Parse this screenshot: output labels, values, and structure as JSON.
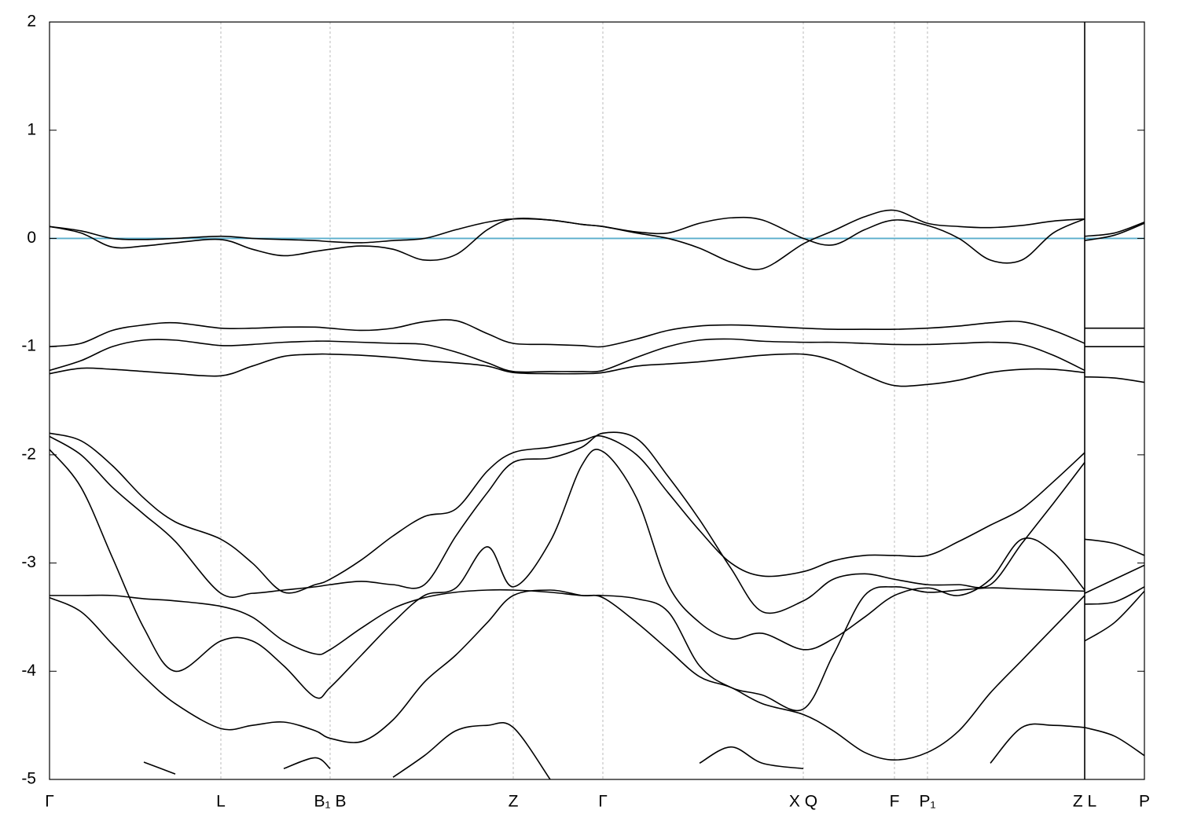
{
  "chart_data": {
    "type": "line",
    "xlim": [
      0,
      1393
    ],
    "ylim": [
      -5,
      2
    ],
    "yticks": [
      -5,
      -4,
      -3,
      -2,
      -1,
      0,
      1,
      2
    ],
    "xticks": [
      {
        "value": 0,
        "label": "Γ"
      },
      {
        "value": 218,
        "label": "L"
      },
      {
        "value": 357,
        "label": "B₁ B"
      },
      {
        "value": 590,
        "label": "Z"
      },
      {
        "value": 704,
        "label": "Γ"
      },
      {
        "value": 959,
        "label": "X Q"
      },
      {
        "value": 1075,
        "label": "F"
      },
      {
        "value": 1117,
        "label": "P₁"
      },
      {
        "value": 1317,
        "label": "Z L"
      },
      {
        "value": 1393,
        "label": "P"
      }
    ],
    "grid": true,
    "breaks": [
      1317
    ],
    "hline": {
      "value": 0,
      "color": "#5aaecb"
    },
    "x": [
      0,
      40,
      80,
      120,
      160,
      218,
      258,
      298,
      338,
      357,
      397,
      437,
      477,
      517,
      557,
      590,
      637,
      677,
      704,
      747,
      787,
      827,
      867,
      907,
      959,
      997,
      1037,
      1075,
      1117,
      1157,
      1197,
      1237,
      1277,
      1317
    ],
    "series": [
      {
        "color": "#000000",
        "values": [
          0.11,
          0.07,
          0.0,
          -0.01,
          0.0,
          0.02,
          0.0,
          -0.01,
          -0.02,
          -0.03,
          -0.04,
          -0.02,
          0.0,
          0.08,
          0.15,
          0.18,
          0.17,
          0.13,
          0.11,
          0.05,
          0.0,
          -0.09,
          -0.22,
          -0.28,
          -0.05,
          0.07,
          0.2,
          0.26,
          0.14,
          0.11,
          0.1,
          0.12,
          0.16,
          0.18
        ]
      },
      {
        "color": "#000000",
        "values": [
          0.11,
          0.05,
          -0.08,
          -0.07,
          -0.04,
          -0.01,
          -0.1,
          -0.16,
          -0.12,
          -0.1,
          -0.07,
          -0.1,
          -0.2,
          -0.15,
          0.08,
          0.18,
          0.17,
          0.13,
          0.11,
          0.06,
          0.05,
          0.14,
          0.19,
          0.17,
          0.0,
          -0.06,
          0.08,
          0.17,
          0.12,
          0.0,
          -0.2,
          -0.2,
          0.05,
          0.18
        ]
      },
      {
        "color": "#000000",
        "values": [
          -1.0,
          -0.97,
          -0.85,
          -0.8,
          -0.78,
          -0.83,
          -0.83,
          -0.82,
          -0.82,
          -0.83,
          -0.85,
          -0.83,
          -0.77,
          -0.76,
          -0.88,
          -0.97,
          -0.98,
          -0.99,
          -1.0,
          -0.93,
          -0.85,
          -0.81,
          -0.8,
          -0.81,
          -0.83,
          -0.84,
          -0.84,
          -0.84,
          -0.83,
          -0.81,
          -0.78,
          -0.77,
          -0.85,
          -0.97
        ]
      },
      {
        "color": "#000000",
        "values": [
          -1.22,
          -1.13,
          -1.0,
          -0.94,
          -0.94,
          -0.99,
          -0.98,
          -0.96,
          -0.95,
          -0.95,
          -0.96,
          -0.97,
          -0.98,
          -1.05,
          -1.15,
          -1.23,
          -1.23,
          -1.23,
          -1.22,
          -1.1,
          -1.0,
          -0.94,
          -0.93,
          -0.95,
          -0.96,
          -0.96,
          -0.97,
          -0.98,
          -0.98,
          -0.97,
          -0.96,
          -0.98,
          -1.08,
          -1.22
        ]
      },
      {
        "color": "#000000",
        "values": [
          -1.25,
          -1.2,
          -1.21,
          -1.23,
          -1.25,
          -1.27,
          -1.18,
          -1.09,
          -1.07,
          -1.07,
          -1.08,
          -1.1,
          -1.13,
          -1.15,
          -1.18,
          -1.24,
          -1.25,
          -1.25,
          -1.24,
          -1.18,
          -1.16,
          -1.14,
          -1.11,
          -1.08,
          -1.07,
          -1.13,
          -1.26,
          -1.36,
          -1.35,
          -1.31,
          -1.24,
          -1.21,
          -1.21,
          -1.24
        ]
      },
      {
        "color": "#000000",
        "values": [
          -1.8,
          -1.87,
          -2.1,
          -2.4,
          -2.62,
          -2.78,
          -3.0,
          -3.27,
          -3.2,
          -3.15,
          -2.97,
          -2.75,
          -2.57,
          -2.5,
          -2.15,
          -1.98,
          -1.93,
          -1.87,
          -1.83,
          -2.0,
          -2.35,
          -2.7,
          -3.0,
          -3.12,
          -3.08,
          -2.98,
          -2.93,
          -2.93,
          -2.93,
          -2.8,
          -2.65,
          -2.5,
          -2.25,
          -1.98
        ]
      },
      {
        "color": "#000000",
        "values": [
          -1.83,
          -2.0,
          -2.3,
          -2.55,
          -2.8,
          -3.28,
          -3.28,
          -3.25,
          -3.22,
          -3.2,
          -3.17,
          -3.2,
          -3.2,
          -2.75,
          -2.35,
          -2.07,
          -2.03,
          -1.93,
          -1.8,
          -1.85,
          -2.2,
          -2.6,
          -3.05,
          -3.45,
          -3.35,
          -3.15,
          -3.1,
          -3.15,
          -3.2,
          -3.2,
          -3.2,
          -2.82,
          -2.45,
          -2.07
        ]
      },
      {
        "color": "#000000",
        "values": [
          -1.95,
          -2.3,
          -2.95,
          -3.6,
          -4.0,
          -3.72,
          -3.72,
          -3.95,
          -4.24,
          -4.15,
          -3.85,
          -3.55,
          -3.3,
          -3.23,
          -2.85,
          -3.22,
          -2.8,
          -2.1,
          -1.97,
          -2.4,
          -3.2,
          -3.55,
          -3.7,
          -3.65,
          -3.8,
          -3.7,
          -3.5,
          -3.3,
          -3.23,
          -3.3,
          -3.15,
          -2.78,
          -2.9,
          -3.25
        ]
      },
      {
        "color": "#000000",
        "values": [
          -3.3,
          -3.3,
          -3.3,
          -3.33,
          -3.35,
          -3.4,
          -3.5,
          -3.72,
          -3.84,
          -3.8,
          -3.6,
          -3.42,
          -3.32,
          -3.27,
          -3.25,
          -3.25,
          -3.27,
          -3.3,
          -3.3,
          -3.33,
          -3.45,
          -3.95,
          -4.15,
          -4.22,
          -4.35,
          -3.85,
          -3.3,
          -3.22,
          -3.27,
          -3.25,
          -3.23,
          -3.24,
          -3.25,
          -3.26
        ]
      },
      {
        "color": "#000000",
        "values": [
          -3.32,
          -3.45,
          -3.75,
          -4.05,
          -4.3,
          -4.53,
          -4.5,
          -4.47,
          -4.55,
          -4.62,
          -4.65,
          -4.45,
          -4.1,
          -3.85,
          -3.55,
          -3.3,
          -3.25,
          -3.3,
          -3.32,
          -3.55,
          -3.8,
          -4.05,
          -4.15,
          -4.3,
          -4.4,
          -4.55,
          -4.75,
          -4.82,
          -4.75,
          -4.55,
          -4.2,
          -3.9,
          -3.6,
          -3.3
        ]
      },
      {
        "color": "#000000",
        "values": [
          null,
          null,
          null,
          -4.84,
          -4.95,
          null,
          null,
          -4.9,
          -4.8,
          -4.9,
          null,
          -4.98,
          -4.78,
          -4.55,
          -4.5,
          -4.52,
          -5.0,
          null,
          null,
          null,
          null,
          -4.85,
          -4.7,
          -4.85,
          -4.9,
          null,
          null,
          null,
          null,
          null,
          -4.85,
          -4.52,
          -4.5,
          -4.52
        ]
      },
      {
        "color": "#000000",
        "x": [
          1317,
          1355,
          1393
        ],
        "values": [
          0.02,
          0.05,
          0.15
        ]
      },
      {
        "color": "#000000",
        "x": [
          1317,
          1355,
          1393
        ],
        "values": [
          -0.02,
          0.03,
          0.14
        ]
      },
      {
        "color": "#000000",
        "x": [
          1317,
          1355,
          1393
        ],
        "values": [
          -0.83,
          -0.83,
          -0.83
        ]
      },
      {
        "color": "#000000",
        "x": [
          1317,
          1355,
          1393
        ],
        "values": [
          -1.0,
          -1.0,
          -1.0
        ]
      },
      {
        "color": "#000000",
        "x": [
          1317,
          1355,
          1393
        ],
        "values": [
          -1.28,
          -1.29,
          -1.33
        ]
      },
      {
        "color": "#000000",
        "x": [
          1317,
          1355,
          1393
        ],
        "values": [
          -2.78,
          -2.82,
          -2.93
        ]
      },
      {
        "color": "#000000",
        "x": [
          1317,
          1355,
          1393
        ],
        "values": [
          -3.28,
          -3.15,
          -3.02
        ]
      },
      {
        "color": "#000000",
        "x": [
          1317,
          1355,
          1393
        ],
        "values": [
          -3.38,
          -3.36,
          -3.22
        ]
      },
      {
        "color": "#000000",
        "x": [
          1317,
          1355,
          1393
        ],
        "values": [
          -3.72,
          -3.55,
          -3.26
        ]
      },
      {
        "color": "#000000",
        "x": [
          1317,
          1355,
          1393
        ],
        "values": [
          -4.52,
          -4.6,
          -4.78
        ]
      }
    ]
  }
}
